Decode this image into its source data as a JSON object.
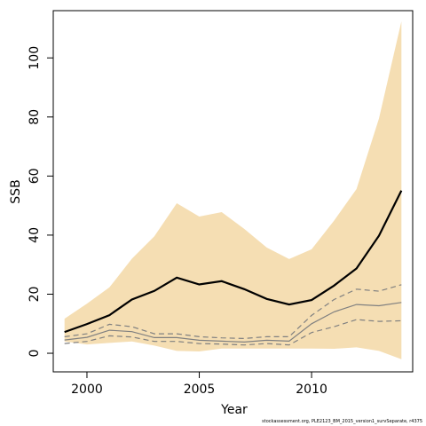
{
  "chart_data": {
    "type": "line",
    "xlabel": "Year",
    "ylabel": "SSB",
    "xlim": [
      1998.5,
      2014.5
    ],
    "ylim": [
      -6.3,
      116.0
    ],
    "x_ticks": [
      2000,
      2005,
      2010
    ],
    "y_ticks": [
      0,
      20,
      40,
      60,
      80,
      100
    ],
    "grid": false,
    "colors": {
      "band": "#f5deb3",
      "estimate": "#000000",
      "survey_line": "#808080",
      "survey_ci": "#808080"
    },
    "x": [
      1999,
      2000,
      2001,
      2002,
      2003,
      2004,
      2005,
      2006,
      2007,
      2008,
      2009,
      2010,
      2011,
      2012,
      2013,
      2014
    ],
    "series": [
      {
        "role": "estimate",
        "values": [
          7.2,
          9.9,
          12.9,
          18.2,
          21.1,
          25.6,
          23.3,
          24.4,
          21.7,
          18.4,
          16.5,
          18.0,
          22.9,
          28.7,
          39.8,
          55.1
        ]
      },
      {
        "role": "confidence-band",
        "lower": [
          4.0,
          3.0,
          3.5,
          4.0,
          2.6,
          0.8,
          0.6,
          1.6,
          1.6,
          1.6,
          1.6,
          1.6,
          1.5,
          2.0,
          0.8,
          -2.0
        ],
        "upper": [
          11.7,
          16.8,
          22.3,
          32.0,
          39.6,
          50.8,
          46.3,
          47.8,
          42.1,
          35.8,
          31.9,
          35.2,
          44.9,
          55.6,
          79.5,
          112.4
        ]
      },
      {
        "role": "survey-estimate",
        "values": [
          4.5,
          5.4,
          7.8,
          7.3,
          5.3,
          5.3,
          4.4,
          4.1,
          3.8,
          4.4,
          4.1,
          10.0,
          14.0,
          16.5,
          16.1,
          17.2
        ]
      },
      {
        "role": "survey-lower",
        "values": [
          3.3,
          4.0,
          5.9,
          5.5,
          4.0,
          4.0,
          3.3,
          3.1,
          2.8,
          3.3,
          2.8,
          7.0,
          9.0,
          11.4,
          10.8,
          11.0
        ]
      },
      {
        "role": "survey-upper",
        "values": [
          5.6,
          6.6,
          9.8,
          9.0,
          6.6,
          6.6,
          5.6,
          5.2,
          5.0,
          5.6,
          5.6,
          12.8,
          18.2,
          21.7,
          21.0,
          23.2
        ]
      }
    ]
  },
  "footer_text": "stockassessment.org, PLE2123_BM_2015_version1_survSeparate, r4375"
}
